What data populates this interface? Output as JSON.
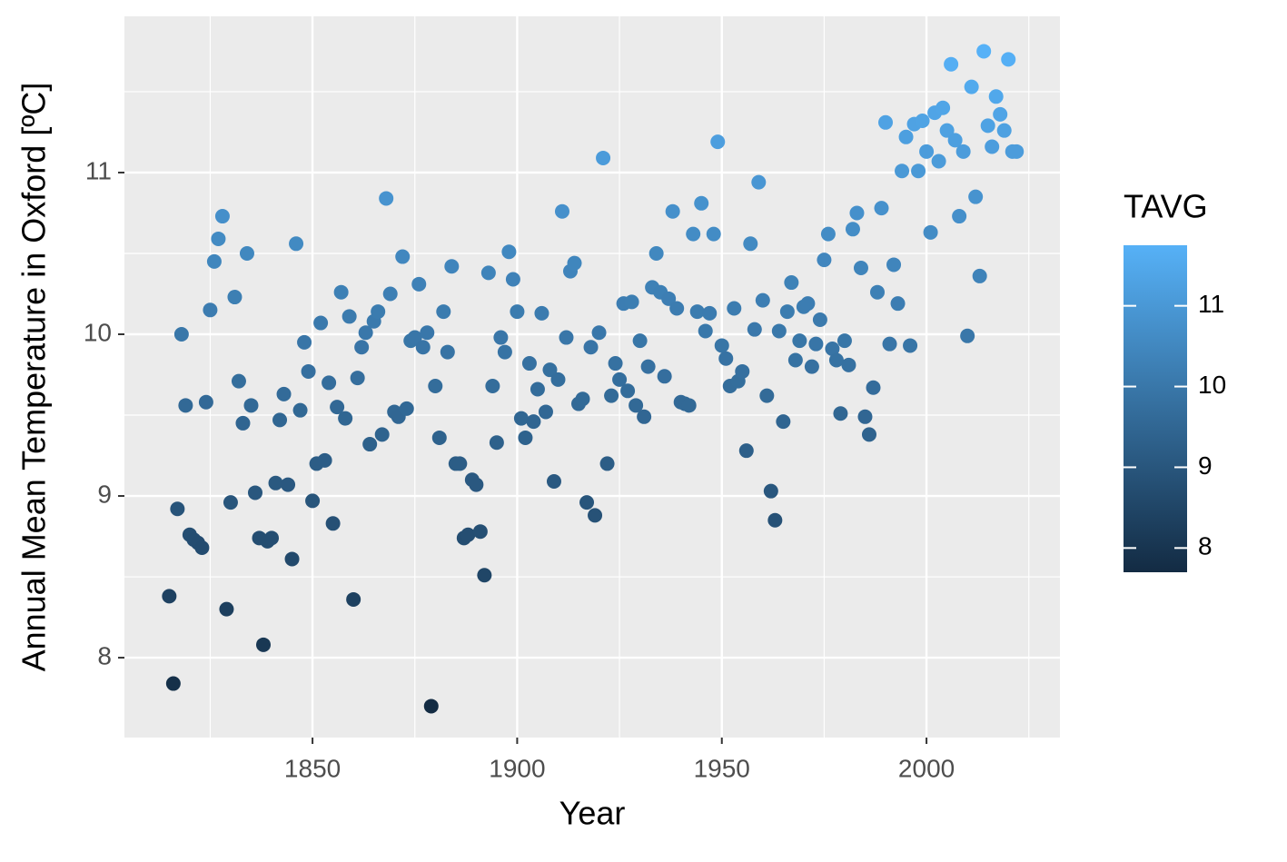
{
  "chart_data": {
    "type": "scatter",
    "x_label": "Year",
    "y_label": "Annual Mean Temperature in Oxford [ºC]",
    "legend_title": "TAVG",
    "color_scale": {
      "low": "#132B43",
      "high": "#56B1F7"
    },
    "legend_ticks": [
      8,
      9,
      10,
      11
    ],
    "grid": true,
    "xlim": [
      1804.05,
      2032.6
    ],
    "ylim": [
      7.506,
      11.966
    ],
    "xticks": [
      1850,
      1900,
      1950,
      2000
    ],
    "yticks": [
      8,
      9,
      10,
      11
    ],
    "x": [
      1815,
      1816,
      1817,
      1818,
      1819,
      1820,
      1821,
      1822,
      1823,
      1824,
      1825,
      1826,
      1827,
      1828,
      1829,
      1830,
      1831,
      1832,
      1833,
      1834,
      1835,
      1836,
      1837,
      1838,
      1839,
      1840,
      1841,
      1842,
      1843,
      1844,
      1845,
      1846,
      1847,
      1848,
      1849,
      1850,
      1851,
      1852,
      1853,
      1854,
      1855,
      1856,
      1857,
      1858,
      1859,
      1860,
      1861,
      1862,
      1863,
      1864,
      1865,
      1866,
      1867,
      1868,
      1869,
      1870,
      1871,
      1872,
      1873,
      1874,
      1875,
      1876,
      1877,
      1878,
      1879,
      1880,
      1881,
      1882,
      1883,
      1884,
      1885,
      1886,
      1887,
      1888,
      1889,
      1890,
      1891,
      1892,
      1893,
      1894,
      1895,
      1896,
      1897,
      1898,
      1899,
      1900,
      1901,
      1902,
      1903,
      1904,
      1905,
      1906,
      1907,
      1908,
      1909,
      1910,
      1911,
      1912,
      1913,
      1914,
      1915,
      1916,
      1917,
      1918,
      1919,
      1920,
      1921,
      1922,
      1923,
      1924,
      1925,
      1926,
      1927,
      1928,
      1929,
      1930,
      1931,
      1932,
      1933,
      1934,
      1935,
      1936,
      1937,
      1938,
      1939,
      1940,
      1941,
      1942,
      1943,
      1944,
      1945,
      1946,
      1947,
      1948,
      1949,
      1950,
      1951,
      1952,
      1953,
      1954,
      1955,
      1956,
      1957,
      1958,
      1959,
      1960,
      1961,
      1962,
      1963,
      1964,
      1965,
      1966,
      1967,
      1968,
      1969,
      1970,
      1971,
      1972,
      1973,
      1974,
      1975,
      1976,
      1977,
      1978,
      1979,
      1980,
      1981,
      1982,
      1983,
      1984,
      1985,
      1986,
      1987,
      1988,
      1989,
      1990,
      1991,
      1992,
      1993,
      1994,
      1995,
      1996,
      1997,
      1998,
      1999,
      2000,
      2001,
      2002,
      2003,
      2004,
      2005,
      2006,
      2007,
      2008,
      2009,
      2010,
      2011,
      2012,
      2013,
      2014,
      2015,
      2016,
      2017,
      2018,
      2019,
      2020,
      2021,
      2022
    ],
    "values": [
      8.38,
      7.84,
      8.92,
      10.0,
      9.56,
      8.76,
      8.73,
      8.71,
      8.68,
      9.58,
      10.15,
      10.45,
      10.59,
      10.73,
      8.3,
      8.96,
      10.23,
      9.71,
      9.45,
      10.5,
      9.56,
      9.02,
      8.74,
      8.08,
      8.72,
      8.74,
      9.08,
      9.47,
      9.63,
      9.07,
      8.61,
      10.56,
      9.53,
      9.95,
      9.77,
      8.97,
      9.2,
      10.07,
      9.22,
      9.7,
      8.83,
      9.55,
      10.26,
      9.48,
      10.11,
      8.36,
      9.73,
      9.92,
      10.01,
      9.32,
      10.08,
      10.14,
      9.38,
      10.84,
      10.25,
      9.52,
      9.49,
      10.48,
      9.54,
      9.96,
      9.98,
      10.31,
      9.92,
      10.01,
      7.7,
      9.68,
      9.36,
      10.14,
      9.89,
      10.42,
      9.2,
      9.2,
      8.74,
      8.76,
      9.1,
      9.07,
      8.78,
      8.51,
      10.38,
      9.68,
      9.33,
      9.98,
      9.89,
      10.51,
      10.34,
      10.14,
      9.48,
      9.36,
      9.82,
      9.46,
      9.66,
      10.13,
      9.52,
      9.78,
      9.09,
      9.72,
      10.76,
      9.98,
      10.39,
      10.44,
      9.57,
      9.6,
      8.96,
      9.92,
      8.88,
      10.01,
      11.09,
      9.2,
      9.62,
      9.82,
      9.72,
      10.19,
      9.65,
      10.2,
      9.56,
      9.96,
      9.49,
      9.8,
      10.29,
      10.5,
      10.26,
      9.74,
      10.22,
      10.76,
      10.16,
      9.58,
      9.57,
      9.56,
      10.62,
      10.14,
      10.81,
      10.02,
      10.13,
      10.62,
      11.19,
      9.93,
      9.85,
      9.68,
      10.16,
      9.71,
      9.77,
      9.28,
      10.56,
      10.03,
      10.94,
      10.21,
      9.62,
      9.03,
      8.85,
      10.02,
      9.46,
      10.14,
      10.32,
      9.84,
      9.96,
      10.17,
      10.19,
      9.8,
      9.94,
      10.09,
      10.46,
      10.62,
      9.91,
      9.84,
      9.51,
      9.96,
      9.81,
      10.65,
      10.75,
      10.41,
      9.49,
      9.38,
      9.67,
      10.26,
      10.78,
      11.31,
      9.94,
      10.43,
      10.19,
      11.01,
      11.22,
      9.93,
      11.3,
      11.01,
      11.32,
      11.13,
      10.63,
      11.37,
      11.07,
      11.4,
      11.26,
      11.67,
      11.2,
      10.73,
      11.13,
      9.99,
      11.53,
      10.85,
      10.36,
      11.75,
      11.29,
      11.16,
      11.47,
      11.36,
      11.26,
      11.7,
      11.13,
      11.13
    ]
  }
}
